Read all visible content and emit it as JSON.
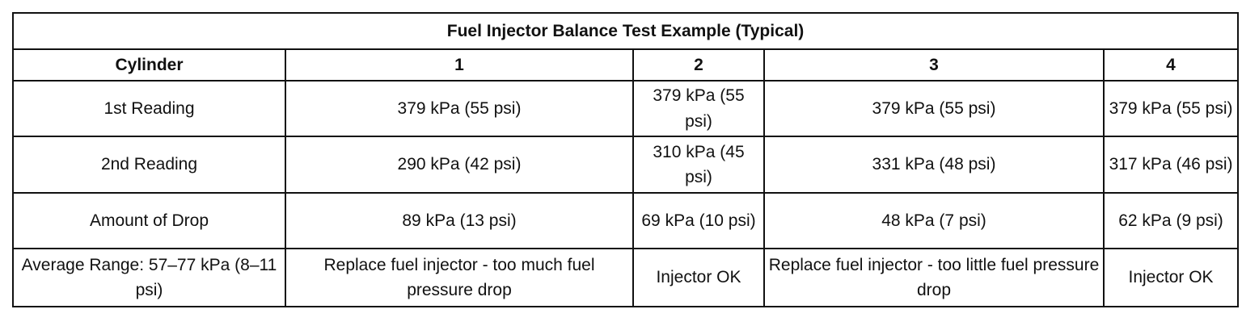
{
  "table": {
    "title": "Fuel Injector Balance Test Example (Typical)",
    "headers": [
      "Cylinder",
      "1",
      "2",
      "3",
      "4"
    ],
    "rows": [
      {
        "label": "1st Reading",
        "cells": [
          "379 kPa (55 psi)",
          "379 kPa (55 psi)",
          "379 kPa (55 psi)",
          "379 kPa (55 psi)"
        ]
      },
      {
        "label": "2nd Reading",
        "cells": [
          "290 kPa (42 psi)",
          "310 kPa (45 psi)",
          "331 kPa (48 psi)",
          "317 kPa (46 psi)"
        ]
      },
      {
        "label": "Amount of Drop",
        "cells": [
          "89 kPa (13 psi)",
          "69 kPa (10 psi)",
          "48 kPa (7 psi)",
          "62 kPa (9 psi)"
        ]
      },
      {
        "label": "Average Range: 57–77 kPa (8–11 psi)",
        "cells": [
          "Replace fuel injector - too much fuel pressure drop",
          "Injector OK",
          "Replace fuel injector - too little fuel pressure drop",
          "Injector OK"
        ]
      }
    ]
  }
}
